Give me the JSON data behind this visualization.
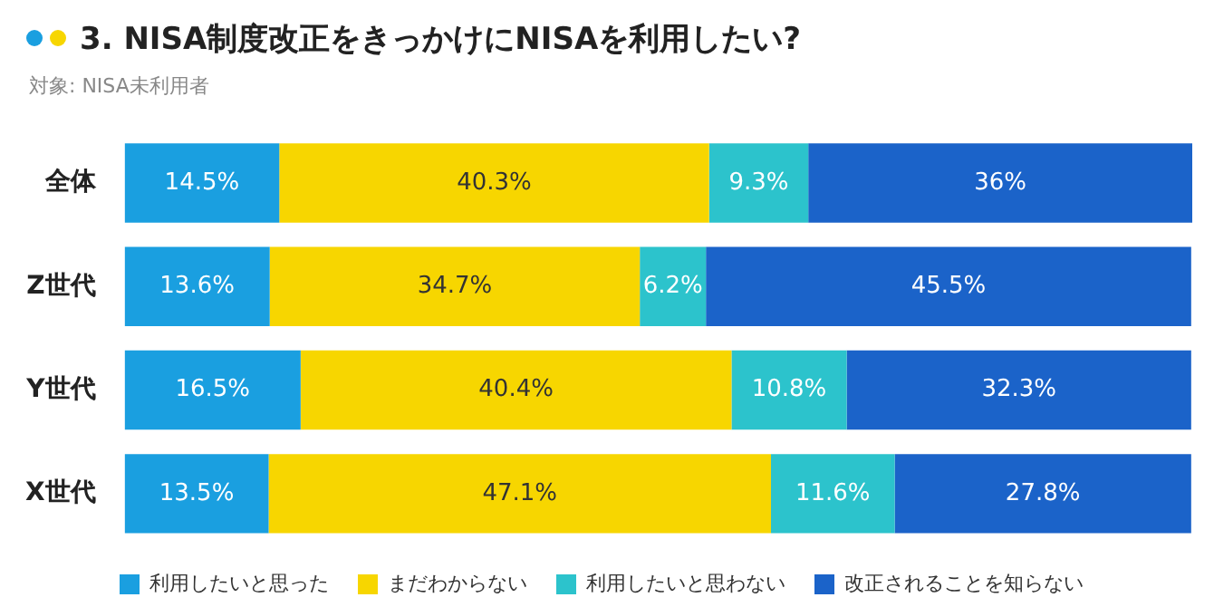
{
  "chart_data": {
    "type": "bar",
    "orientation": "horizontal",
    "stacked": true,
    "title": "3. NISA制度改正をきっかけにNISAを利用したい?",
    "subtitle": "対象: NISA未利用者",
    "categories": [
      "全体",
      "Z世代",
      "Y世代",
      "X世代"
    ],
    "series": [
      {
        "name": "利用したいと思った",
        "color": "#1a9fe0",
        "values": [
          14.5,
          13.6,
          16.5,
          13.5
        ],
        "value_labels": [
          "14.5%",
          "13.6%",
          "16.5%",
          "13.5%"
        ]
      },
      {
        "name": "まだわからない",
        "color": "#f7d600",
        "values": [
          40.3,
          34.7,
          40.4,
          47.1
        ],
        "value_labels": [
          "40.3%",
          "34.7%",
          "40.4%",
          "47.1%"
        ]
      },
      {
        "name": "利用したいと思わない",
        "color": "#2cc3cc",
        "values": [
          9.3,
          6.2,
          10.8,
          11.6
        ],
        "value_labels": [
          "9.3%",
          "6.2%",
          "10.8%",
          "11.6%"
        ]
      },
      {
        "name": "改正されることを知らない",
        "color": "#1b63c9",
        "values": [
          36,
          45.5,
          32.3,
          27.8
        ],
        "value_labels": [
          "36%",
          "45.5%",
          "32.3%",
          "27.8%"
        ]
      }
    ],
    "xlim": [
      0,
      100.1
    ],
    "tick_labels": "y",
    "legend": "bottom"
  }
}
